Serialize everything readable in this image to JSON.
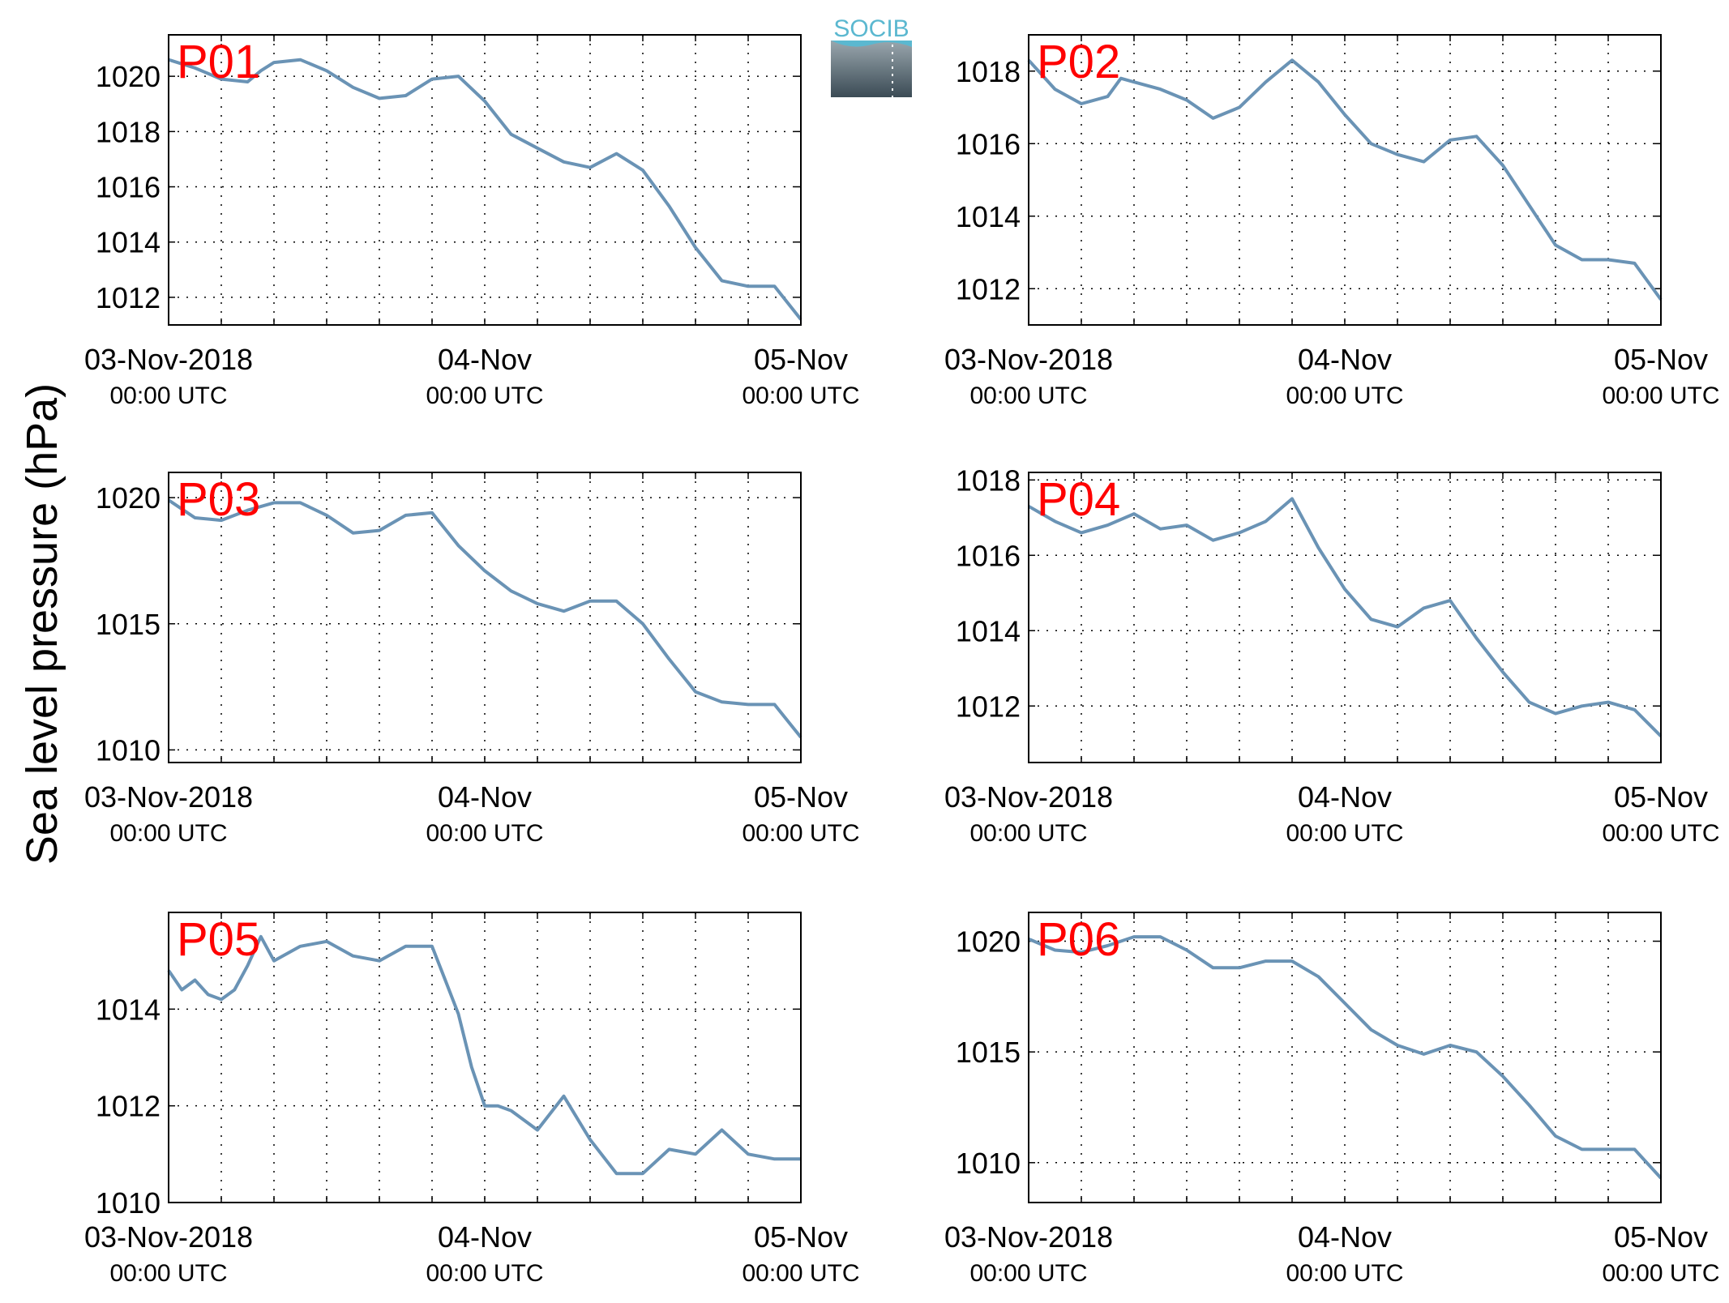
{
  "figure": {
    "ylabel": "Sea level pressure (hPa)",
    "line_color": "#6a93b5",
    "label_color": "#ff0000",
    "logo": {
      "text": "SOCIB",
      "colors": [
        "#5bb8d0",
        "#3f525e"
      ]
    }
  },
  "chart_data": [
    {
      "type": "line",
      "title": "P01",
      "x_ticks": [
        {
          "main": "03-Nov-2018",
          "sub": "00:00 UTC"
        },
        {
          "main": "04-Nov",
          "sub": "00:00 UTC"
        },
        {
          "main": "05-Nov",
          "sub": "00:00 UTC"
        }
      ],
      "xlim": [
        "2018-11-03 00:00",
        "2018-11-05 00:00"
      ],
      "ylim": [
        1011,
        1021.5
      ],
      "yticks": [
        1012,
        1014,
        1016,
        1018,
        1020
      ],
      "grid": true,
      "x": [
        "2018-11-03 00:00",
        "2018-11-03 02:00",
        "2018-11-03 04:00",
        "2018-11-03 06:00",
        "2018-11-03 07:00",
        "2018-11-03 08:00",
        "2018-11-03 10:00",
        "2018-11-03 12:00",
        "2018-11-03 14:00",
        "2018-11-03 16:00",
        "2018-11-03 18:00",
        "2018-11-03 20:00",
        "2018-11-03 22:00",
        "2018-11-04 00:00",
        "2018-11-04 02:00",
        "2018-11-04 04:00",
        "2018-11-04 06:00",
        "2018-11-04 08:00",
        "2018-11-04 10:00",
        "2018-11-04 12:00",
        "2018-11-04 14:00",
        "2018-11-04 16:00",
        "2018-11-04 18:00",
        "2018-11-04 20:00",
        "2018-11-04 22:00",
        "2018-11-05 00:00"
      ],
      "y": [
        1020.6,
        1020.3,
        1019.9,
        1019.8,
        1020.2,
        1020.5,
        1020.6,
        1020.2,
        1019.6,
        1019.2,
        1019.3,
        1019.9,
        1020.0,
        1019.1,
        1017.9,
        1017.4,
        1016.9,
        1016.7,
        1017.2,
        1016.6,
        1015.3,
        1013.8,
        1012.6,
        1012.4,
        1012.4,
        1011.2
      ]
    },
    {
      "type": "line",
      "title": "P02",
      "x_ticks": [
        {
          "main": "03-Nov-2018",
          "sub": "00:00 UTC"
        },
        {
          "main": "04-Nov",
          "sub": "00:00 UTC"
        },
        {
          "main": "05-Nov",
          "sub": "00:00 UTC"
        }
      ],
      "xlim": [
        "2018-11-03 00:00",
        "2018-11-05 00:00"
      ],
      "ylim": [
        1011,
        1019
      ],
      "yticks": [
        1012,
        1014,
        1016,
        1018
      ],
      "grid": true,
      "x": [
        "2018-11-03 00:00",
        "2018-11-03 02:00",
        "2018-11-03 04:00",
        "2018-11-03 06:00",
        "2018-11-03 07:00",
        "2018-11-03 08:00",
        "2018-11-03 10:00",
        "2018-11-03 12:00",
        "2018-11-03 14:00",
        "2018-11-03 16:00",
        "2018-11-03 18:00",
        "2018-11-03 20:00",
        "2018-11-03 22:00",
        "2018-11-04 00:00",
        "2018-11-04 02:00",
        "2018-11-04 04:00",
        "2018-11-04 06:00",
        "2018-11-04 08:00",
        "2018-11-04 10:00",
        "2018-11-04 12:00",
        "2018-11-04 14:00",
        "2018-11-04 16:00",
        "2018-11-04 18:00",
        "2018-11-04 20:00",
        "2018-11-04 22:00",
        "2018-11-05 00:00"
      ],
      "y": [
        1018.3,
        1017.5,
        1017.1,
        1017.3,
        1017.8,
        1017.7,
        1017.5,
        1017.2,
        1016.7,
        1017.0,
        1017.7,
        1018.3,
        1017.7,
        1016.8,
        1016.0,
        1015.7,
        1015.5,
        1016.1,
        1016.2,
        1015.4,
        1014.3,
        1013.2,
        1012.8,
        1012.8,
        1012.7,
        1011.7
      ]
    },
    {
      "type": "line",
      "title": "P03",
      "x_ticks": [
        {
          "main": "03-Nov-2018",
          "sub": "00:00 UTC"
        },
        {
          "main": "04-Nov",
          "sub": "00:00 UTC"
        },
        {
          "main": "05-Nov",
          "sub": "00:00 UTC"
        }
      ],
      "xlim": [
        "2018-11-03 00:00",
        "2018-11-05 00:00"
      ],
      "ylim": [
        1009.5,
        1021
      ],
      "yticks": [
        1010,
        1015,
        1020
      ],
      "grid": true,
      "x": [
        "2018-11-03 00:00",
        "2018-11-03 02:00",
        "2018-11-03 04:00",
        "2018-11-03 06:00",
        "2018-11-03 08:00",
        "2018-11-03 10:00",
        "2018-11-03 12:00",
        "2018-11-03 14:00",
        "2018-11-03 16:00",
        "2018-11-03 18:00",
        "2018-11-03 20:00",
        "2018-11-03 22:00",
        "2018-11-04 00:00",
        "2018-11-04 02:00",
        "2018-11-04 04:00",
        "2018-11-04 06:00",
        "2018-11-04 08:00",
        "2018-11-04 10:00",
        "2018-11-04 12:00",
        "2018-11-04 14:00",
        "2018-11-04 16:00",
        "2018-11-04 18:00",
        "2018-11-04 20:00",
        "2018-11-04 22:00",
        "2018-11-05 00:00"
      ],
      "y": [
        1019.9,
        1019.2,
        1019.1,
        1019.5,
        1019.8,
        1019.8,
        1019.3,
        1018.6,
        1018.7,
        1019.3,
        1019.4,
        1018.1,
        1017.1,
        1016.3,
        1015.8,
        1015.5,
        1015.9,
        1015.9,
        1015.0,
        1013.6,
        1012.3,
        1011.9,
        1011.8,
        1011.8,
        1010.5
      ]
    },
    {
      "type": "line",
      "title": "P04",
      "x_ticks": [
        {
          "main": "03-Nov-2018",
          "sub": "00:00 UTC"
        },
        {
          "main": "04-Nov",
          "sub": "00:00 UTC"
        },
        {
          "main": "05-Nov",
          "sub": "00:00 UTC"
        }
      ],
      "xlim": [
        "2018-11-03 00:00",
        "2018-11-05 00:00"
      ],
      "ylim": [
        1010.5,
        1018.2
      ],
      "yticks": [
        1012,
        1014,
        1016,
        1018
      ],
      "grid": true,
      "x": [
        "2018-11-03 00:00",
        "2018-11-03 02:00",
        "2018-11-03 04:00",
        "2018-11-03 06:00",
        "2018-11-03 08:00",
        "2018-11-03 10:00",
        "2018-11-03 12:00",
        "2018-11-03 14:00",
        "2018-11-03 16:00",
        "2018-11-03 18:00",
        "2018-11-03 20:00",
        "2018-11-03 22:00",
        "2018-11-04 00:00",
        "2018-11-04 02:00",
        "2018-11-04 04:00",
        "2018-11-04 06:00",
        "2018-11-04 08:00",
        "2018-11-04 10:00",
        "2018-11-04 12:00",
        "2018-11-04 14:00",
        "2018-11-04 16:00",
        "2018-11-04 18:00",
        "2018-11-04 20:00",
        "2018-11-04 22:00",
        "2018-11-05 00:00"
      ],
      "y": [
        1017.3,
        1016.9,
        1016.6,
        1016.8,
        1017.1,
        1016.7,
        1016.8,
        1016.4,
        1016.6,
        1016.9,
        1017.5,
        1016.2,
        1015.1,
        1014.3,
        1014.1,
        1014.6,
        1014.8,
        1013.8,
        1012.9,
        1012.1,
        1011.8,
        1012.0,
        1012.1,
        1011.9,
        1011.2
      ]
    },
    {
      "type": "line",
      "title": "P05",
      "x_ticks": [
        {
          "main": "03-Nov-2018",
          "sub": "00:00 UTC"
        },
        {
          "main": "04-Nov",
          "sub": "00:00 UTC"
        },
        {
          "main": "05-Nov",
          "sub": "00:00 UTC"
        }
      ],
      "xlim": [
        "2018-11-03 00:00",
        "2018-11-05 00:00"
      ],
      "ylim": [
        1010,
        1016
      ],
      "yticks": [
        1010,
        1012,
        1014
      ],
      "grid": true,
      "x": [
        "2018-11-03 00:00",
        "2018-11-03 01:00",
        "2018-11-03 02:00",
        "2018-11-03 03:00",
        "2018-11-03 04:00",
        "2018-11-03 05:00",
        "2018-11-03 06:00",
        "2018-11-03 07:00",
        "2018-11-03 08:00",
        "2018-11-03 10:00",
        "2018-11-03 12:00",
        "2018-11-03 14:00",
        "2018-11-03 16:00",
        "2018-11-03 18:00",
        "2018-11-03 20:00",
        "2018-11-03 21:00",
        "2018-11-03 22:00",
        "2018-11-03 23:00",
        "2018-11-04 00:00",
        "2018-11-04 01:00",
        "2018-11-04 02:00",
        "2018-11-04 04:00",
        "2018-11-04 06:00",
        "2018-11-04 08:00",
        "2018-11-04 10:00",
        "2018-11-04 12:00",
        "2018-11-04 14:00",
        "2018-11-04 16:00",
        "2018-11-04 18:00",
        "2018-11-04 20:00",
        "2018-11-04 22:00",
        "2018-11-05 00:00"
      ],
      "y": [
        1014.8,
        1014.4,
        1014.6,
        1014.3,
        1014.2,
        1014.4,
        1014.9,
        1015.5,
        1015.0,
        1015.3,
        1015.4,
        1015.1,
        1015.0,
        1015.3,
        1015.3,
        1014.6,
        1013.9,
        1012.8,
        1012.0,
        1012.0,
        1011.9,
        1011.5,
        1012.2,
        1011.3,
        1010.6,
        1010.6,
        1011.1,
        1011.0,
        1011.5,
        1011.0,
        1010.9,
        1010.9
      ]
    },
    {
      "type": "line",
      "title": "P06",
      "x_ticks": [
        {
          "main": "03-Nov-2018",
          "sub": "00:00 UTC"
        },
        {
          "main": "04-Nov",
          "sub": "00:00 UTC"
        },
        {
          "main": "05-Nov",
          "sub": "00:00 UTC"
        }
      ],
      "xlim": [
        "2018-11-03 00:00",
        "2018-11-05 00:00"
      ],
      "ylim": [
        1008.2,
        1021.3
      ],
      "yticks": [
        1010,
        1015,
        1020
      ],
      "grid": true,
      "x": [
        "2018-11-03 00:00",
        "2018-11-03 02:00",
        "2018-11-03 04:00",
        "2018-11-03 06:00",
        "2018-11-03 08:00",
        "2018-11-03 10:00",
        "2018-11-03 12:00",
        "2018-11-03 14:00",
        "2018-11-03 16:00",
        "2018-11-03 18:00",
        "2018-11-03 20:00",
        "2018-11-03 22:00",
        "2018-11-04 00:00",
        "2018-11-04 02:00",
        "2018-11-04 04:00",
        "2018-11-04 06:00",
        "2018-11-04 08:00",
        "2018-11-04 10:00",
        "2018-11-04 12:00",
        "2018-11-04 14:00",
        "2018-11-04 16:00",
        "2018-11-04 18:00",
        "2018-11-04 20:00",
        "2018-11-04 22:00",
        "2018-11-05 00:00"
      ],
      "y": [
        1020.1,
        1019.6,
        1019.5,
        1019.8,
        1020.2,
        1020.2,
        1019.6,
        1018.8,
        1018.8,
        1019.1,
        1019.1,
        1018.4,
        1017.2,
        1016.0,
        1015.3,
        1014.9,
        1015.3,
        1015.0,
        1013.9,
        1012.6,
        1011.2,
        1010.6,
        1010.6,
        1010.6,
        1009.3
      ]
    }
  ]
}
